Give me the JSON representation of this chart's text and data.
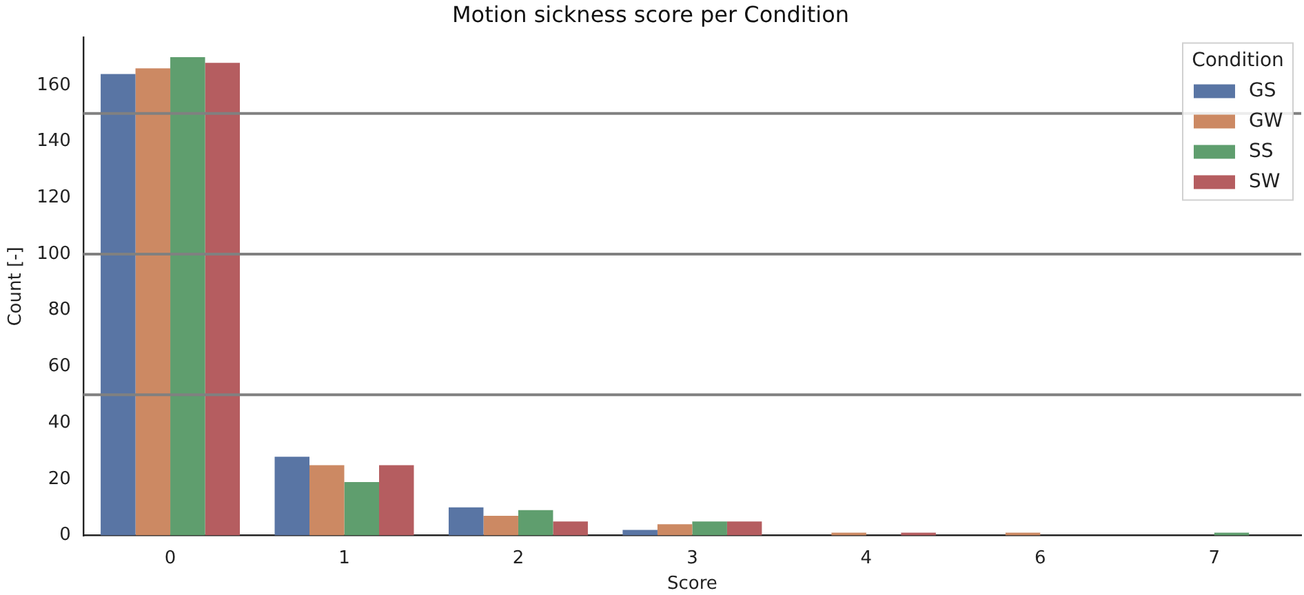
{
  "chart_data": {
    "type": "bar",
    "title": "Motion sickness score per Condition",
    "xlabel": "Score",
    "ylabel": "Count [-]",
    "legend_title": "Condition",
    "legend": "top right",
    "grid": false,
    "categories": [
      "0",
      "1",
      "2",
      "3",
      "4",
      "6",
      "7"
    ],
    "series": [
      {
        "name": "GS",
        "color": "#5975a4",
        "values": [
          164,
          28,
          10,
          2,
          0,
          0,
          0
        ]
      },
      {
        "name": "GW",
        "color": "#cc8963",
        "values": [
          166,
          25,
          7,
          4,
          1,
          1,
          0
        ]
      },
      {
        "name": "SS",
        "color": "#5f9e6e",
        "values": [
          170,
          19,
          9,
          5,
          0,
          0,
          1
        ]
      },
      {
        "name": "SW",
        "color": "#b55d60",
        "values": [
          168,
          25,
          5,
          5,
          1,
          0,
          0
        ]
      }
    ],
    "ylim": [
      0,
      177
    ],
    "yticks": [
      0,
      20,
      40,
      60,
      80,
      100,
      120,
      140,
      160
    ],
    "ref_lines": [
      {
        "axis": "y",
        "value": 50,
        "color": "#808080"
      },
      {
        "axis": "y",
        "value": 100,
        "color": "#808080"
      },
      {
        "axis": "y",
        "value": 150,
        "color": "#808080"
      }
    ]
  }
}
